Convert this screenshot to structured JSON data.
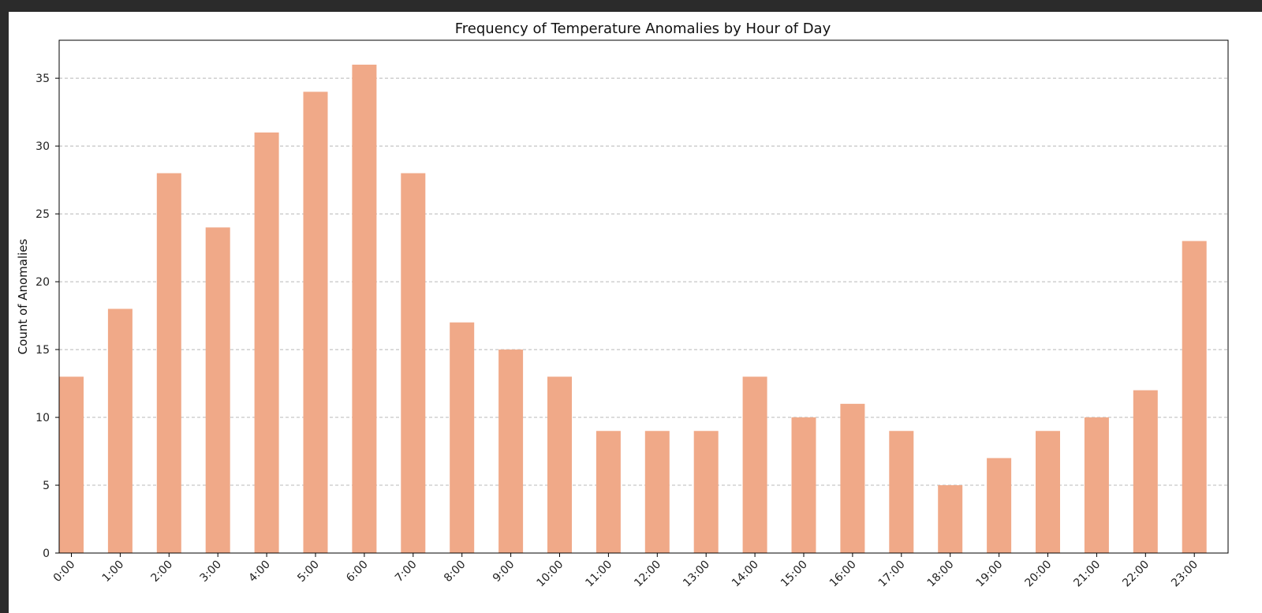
{
  "chart_data": {
    "type": "bar",
    "title": "Frequency of Temperature Anomalies by Hour of Day",
    "xlabel": "",
    "ylabel": "Count of Anomalies",
    "categories": [
      "0:00",
      "1:00",
      "2:00",
      "3:00",
      "4:00",
      "5:00",
      "6:00",
      "7:00",
      "8:00",
      "9:00",
      "10:00",
      "11:00",
      "12:00",
      "13:00",
      "14:00",
      "15:00",
      "16:00",
      "17:00",
      "18:00",
      "19:00",
      "20:00",
      "21:00",
      "22:00",
      "23:00"
    ],
    "values": [
      13,
      18,
      28,
      24,
      31,
      34,
      36,
      28,
      17,
      15,
      13,
      9,
      9,
      9,
      13,
      10,
      11,
      9,
      5,
      7,
      9,
      10,
      12,
      23
    ],
    "yticks": [
      0,
      5,
      10,
      15,
      20,
      25,
      30,
      35
    ],
    "ylim": [
      0,
      37.8
    ],
    "grid": "horizontal-dashed",
    "colors": {
      "bar": "#f0a988",
      "grid": "#b8b8b8",
      "axis": "#000000"
    }
  }
}
